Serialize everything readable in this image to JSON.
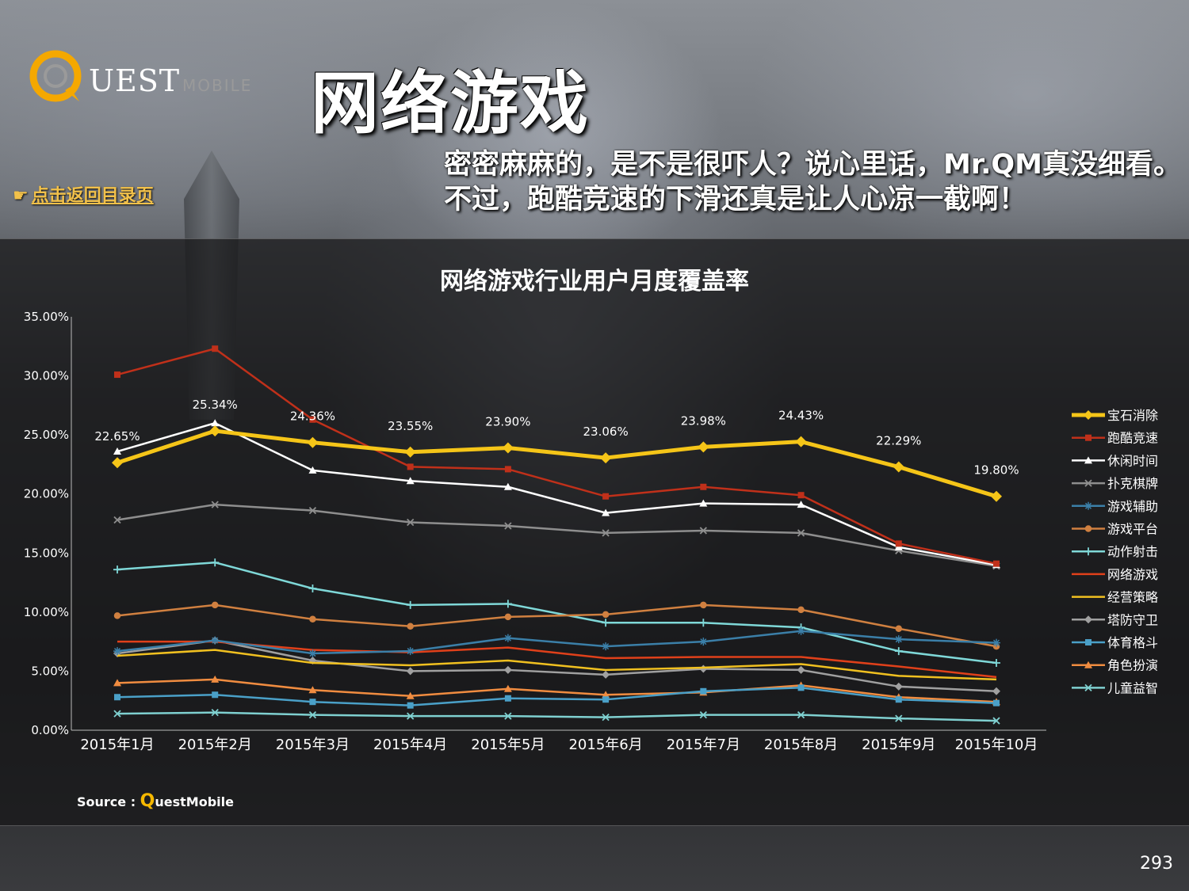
{
  "header": {
    "logo_letter": "Q",
    "logo_text": "UEST",
    "logo_sub": "MOBILE",
    "title": "网络游戏",
    "subtitle": "密密麻麻的，是不是很吓人？说心里话，Mr.QM真没细看。不过，跑酷竞速的下滑还真是让人心凉一截啊！",
    "back_link": "点击返回目录页"
  },
  "icons": {
    "back": "pointing-hand-icon",
    "logo": "quest-logo-icon"
  },
  "footer": {
    "source_prefix": "Source : ",
    "source_q": "Q",
    "source_rest": "uestMobile",
    "page_number": "293"
  },
  "chart_data": {
    "type": "line",
    "title": "网络游戏行业用户月度覆盖率",
    "categories": [
      "2015年1月",
      "2015年2月",
      "2015年3月",
      "2015年4月",
      "2015年5月",
      "2015年6月",
      "2015年7月",
      "2015年8月",
      "2015年9月",
      "2015年10月"
    ],
    "ylim": [
      0,
      35
    ],
    "yticks": [
      "0.00%",
      "5.00%",
      "10.00%",
      "15.00%",
      "20.00%",
      "25.00%",
      "30.00%",
      "35.00%"
    ],
    "legend_position": "right",
    "series": [
      {
        "name": "宝石消除",
        "color": "#f5c518",
        "marker": "diamond",
        "values": [
          22.65,
          25.34,
          24.36,
          23.55,
          23.9,
          23.06,
          23.98,
          24.43,
          22.29,
          19.8
        ],
        "labels": [
          "22.65%",
          "25.34%",
          "24.36%",
          "23.55%",
          "23.90%",
          "23.06%",
          "23.98%",
          "24.43%",
          "22.29%",
          "19.80%"
        ]
      },
      {
        "name": "跑酷竞速",
        "color": "#c0301a",
        "marker": "square",
        "values": [
          30.1,
          32.3,
          26.3,
          22.3,
          22.1,
          19.8,
          20.6,
          19.9,
          15.8,
          14.1
        ]
      },
      {
        "name": "休闲时间",
        "color": "#ffffff",
        "marker": "triangle",
        "values": [
          23.6,
          26.0,
          22.0,
          21.1,
          20.6,
          18.4,
          19.2,
          19.1,
          15.5,
          14.0
        ]
      },
      {
        "name": "扑克棋牌",
        "color": "#8e8e8e",
        "marker": "x",
        "values": [
          17.8,
          19.1,
          18.6,
          17.6,
          17.3,
          16.7,
          16.9,
          16.7,
          15.2,
          13.9
        ]
      },
      {
        "name": "游戏辅助",
        "color": "#3b7fa8",
        "marker": "star",
        "values": [
          6.7,
          7.6,
          6.5,
          6.7,
          7.8,
          7.1,
          7.5,
          8.4,
          7.7,
          7.4
        ]
      },
      {
        "name": "游戏平台",
        "color": "#d08040",
        "marker": "circle",
        "values": [
          9.7,
          10.6,
          9.4,
          8.8,
          9.6,
          9.8,
          10.6,
          10.2,
          8.6,
          7.1
        ]
      },
      {
        "name": "动作射击",
        "color": "#7fd8d8",
        "marker": "plus",
        "values": [
          13.6,
          14.2,
          12.0,
          10.6,
          10.7,
          9.1,
          9.1,
          8.7,
          6.7,
          5.7
        ]
      },
      {
        "name": "网络游戏",
        "color": "#e0401a",
        "marker": "none",
        "values": [
          7.5,
          7.5,
          6.8,
          6.6,
          7.0,
          6.1,
          6.2,
          6.2,
          5.4,
          4.5
        ]
      },
      {
        "name": "经营策略",
        "color": "#f0c020",
        "marker": "none",
        "values": [
          6.3,
          6.8,
          5.7,
          5.5,
          5.9,
          5.1,
          5.3,
          5.6,
          4.6,
          4.3
        ]
      },
      {
        "name": "塔防守卫",
        "color": "#a0a0a0",
        "marker": "diamond",
        "values": [
          6.5,
          7.6,
          5.9,
          5.0,
          5.1,
          4.7,
          5.2,
          5.1,
          3.7,
          3.3
        ]
      },
      {
        "name": "体育格斗",
        "color": "#4aa0c8",
        "marker": "square",
        "values": [
          2.8,
          3.0,
          2.4,
          2.1,
          2.7,
          2.6,
          3.3,
          3.6,
          2.6,
          2.3
        ]
      },
      {
        "name": "角色扮演",
        "color": "#f08c40",
        "marker": "triangle",
        "values": [
          4.0,
          4.3,
          3.4,
          2.9,
          3.5,
          3.0,
          3.2,
          3.8,
          2.8,
          2.4
        ]
      },
      {
        "name": "儿童益智",
        "color": "#7fd0d0",
        "marker": "x",
        "values": [
          1.4,
          1.5,
          1.3,
          1.2,
          1.2,
          1.1,
          1.3,
          1.3,
          1.0,
          0.8
        ]
      }
    ]
  }
}
